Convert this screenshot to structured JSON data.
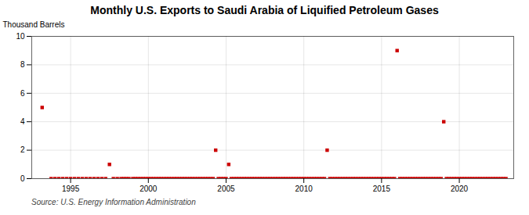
{
  "chart_data": {
    "type": "scatter",
    "title": "Monthly U.S. Exports to Saudi Arabia of Liquified Petroleum Gases",
    "ylabel": "Thousand Barrels",
    "annotations": [
      "Source: U.S. Energy Information Administration"
    ],
    "color": "#cc0000",
    "marker": "square",
    "grid": true,
    "xlim": [
      1992.5,
      2023.5
    ],
    "ylim": [
      0,
      10
    ],
    "xticks": [
      1995,
      2000,
      2005,
      2010,
      2015,
      2020
    ],
    "yticks": [
      0,
      2,
      4,
      6,
      8,
      10
    ],
    "x": [
      1993.17,
      1993.75,
      1994.0,
      1994.25,
      1994.5,
      1994.75,
      1995.0,
      1995.25,
      1995.5,
      1995.75,
      1996.0,
      1996.25,
      1996.5,
      1996.75,
      1997.0,
      1997.25,
      1997.5,
      1997.75,
      1998.0,
      1998.25,
      1998.42,
      1998.58,
      1998.75,
      1999.0,
      1999.17,
      1999.33,
      1999.5,
      1999.67,
      1999.83,
      2000.0,
      2000.17,
      2000.33,
      2000.5,
      2000.67,
      2000.83,
      2001.0,
      2001.17,
      2001.33,
      2001.5,
      2001.67,
      2001.83,
      2002.0,
      2002.17,
      2002.33,
      2002.5,
      2002.67,
      2002.83,
      2003.0,
      2003.17,
      2003.33,
      2003.5,
      2003.67,
      2003.83,
      2004.0,
      2004.17,
      2004.33,
      2004.5,
      2004.67,
      2004.83,
      2005.0,
      2005.17,
      2005.33,
      2005.5,
      2005.67,
      2005.83,
      2006.0,
      2006.17,
      2006.33,
      2006.5,
      2006.67,
      2006.83,
      2007.0,
      2007.17,
      2007.33,
      2007.5,
      2007.67,
      2007.83,
      2008.0,
      2008.17,
      2008.33,
      2008.5,
      2008.67,
      2008.83,
      2009.0,
      2009.17,
      2009.33,
      2009.5,
      2009.67,
      2009.83,
      2010.0,
      2010.17,
      2010.33,
      2010.5,
      2010.67,
      2010.83,
      2011.0,
      2011.17,
      2011.33,
      2011.5,
      2011.67,
      2011.83,
      2012.0,
      2012.17,
      2012.33,
      2012.5,
      2012.67,
      2012.83,
      2013.0,
      2013.17,
      2013.33,
      2013.5,
      2013.67,
      2013.83,
      2014.0,
      2014.17,
      2014.33,
      2014.5,
      2014.67,
      2014.83,
      2015.0,
      2015.17,
      2015.33,
      2015.5,
      2015.67,
      2015.83,
      2016.0,
      2016.17,
      2016.33,
      2016.5,
      2016.67,
      2016.83,
      2017.0,
      2017.17,
      2017.33,
      2017.5,
      2017.67,
      2017.83,
      2018.0,
      2018.17,
      2018.33,
      2018.5,
      2018.67,
      2018.83,
      2019.0,
      2019.17,
      2019.33,
      2019.5,
      2019.67,
      2019.83,
      2020.0,
      2020.17,
      2020.33,
      2020.5,
      2020.67,
      2020.83,
      2021.0,
      2021.17,
      2021.33,
      2021.5,
      2021.67,
      2021.83,
      2022.0,
      2022.17,
      2022.33,
      2022.5,
      2022.67,
      2022.83,
      2023.0
    ],
    "values": [
      5.0,
      0.0,
      0.0,
      0.0,
      0.0,
      0.0,
      0.0,
      0.0,
      0.0,
      0.0,
      0.0,
      0.0,
      0.0,
      0.0,
      0.0,
      0.0,
      1.0,
      0.0,
      0.0,
      0.0,
      0.0,
      0.0,
      0.0,
      0.0,
      0.0,
      0.0,
      0.0,
      0.0,
      0.0,
      0.0,
      0.0,
      0.0,
      0.0,
      0.0,
      0.0,
      0.0,
      0.0,
      0.0,
      0.0,
      0.0,
      0.0,
      0.0,
      0.0,
      0.0,
      0.0,
      0.0,
      0.0,
      0.0,
      0.0,
      0.0,
      0.0,
      0.0,
      0.0,
      0.0,
      0.0,
      2.0,
      0.0,
      0.0,
      0.0,
      0.0,
      1.0,
      0.0,
      0.0,
      0.0,
      0.0,
      0.0,
      0.0,
      0.0,
      0.0,
      0.0,
      0.0,
      0.0,
      0.0,
      0.0,
      0.0,
      0.0,
      0.0,
      0.0,
      0.0,
      0.0,
      0.0,
      0.0,
      0.0,
      0.0,
      0.0,
      0.0,
      0.0,
      0.0,
      0.0,
      0.0,
      0.0,
      0.0,
      0.0,
      0.0,
      0.0,
      0.0,
      0.0,
      0.0,
      2.0,
      0.0,
      0.0,
      0.0,
      0.0,
      0.0,
      0.0,
      0.0,
      0.0,
      0.0,
      0.0,
      0.0,
      0.0,
      0.0,
      0.0,
      0.0,
      0.0,
      0.0,
      0.0,
      0.0,
      0.0,
      0.0,
      0.0,
      0.0,
      0.0,
      0.0,
      0.0,
      9.0,
      0.0,
      0.0,
      0.0,
      0.0,
      0.0,
      0.0,
      0.0,
      0.0,
      0.0,
      0.0,
      0.0,
      0.0,
      0.0,
      0.0,
      0.0,
      0.0,
      0.0,
      4.0,
      0.0,
      0.0,
      0.0,
      0.0,
      0.0,
      0.0,
      0.0,
      0.0,
      0.0,
      0.0,
      0.0,
      0.0,
      0.0,
      0.0,
      0.0,
      0.0,
      0.0,
      0.0,
      0.0,
      0.0,
      0.0,
      0.0,
      0.0,
      0.0
    ]
  }
}
